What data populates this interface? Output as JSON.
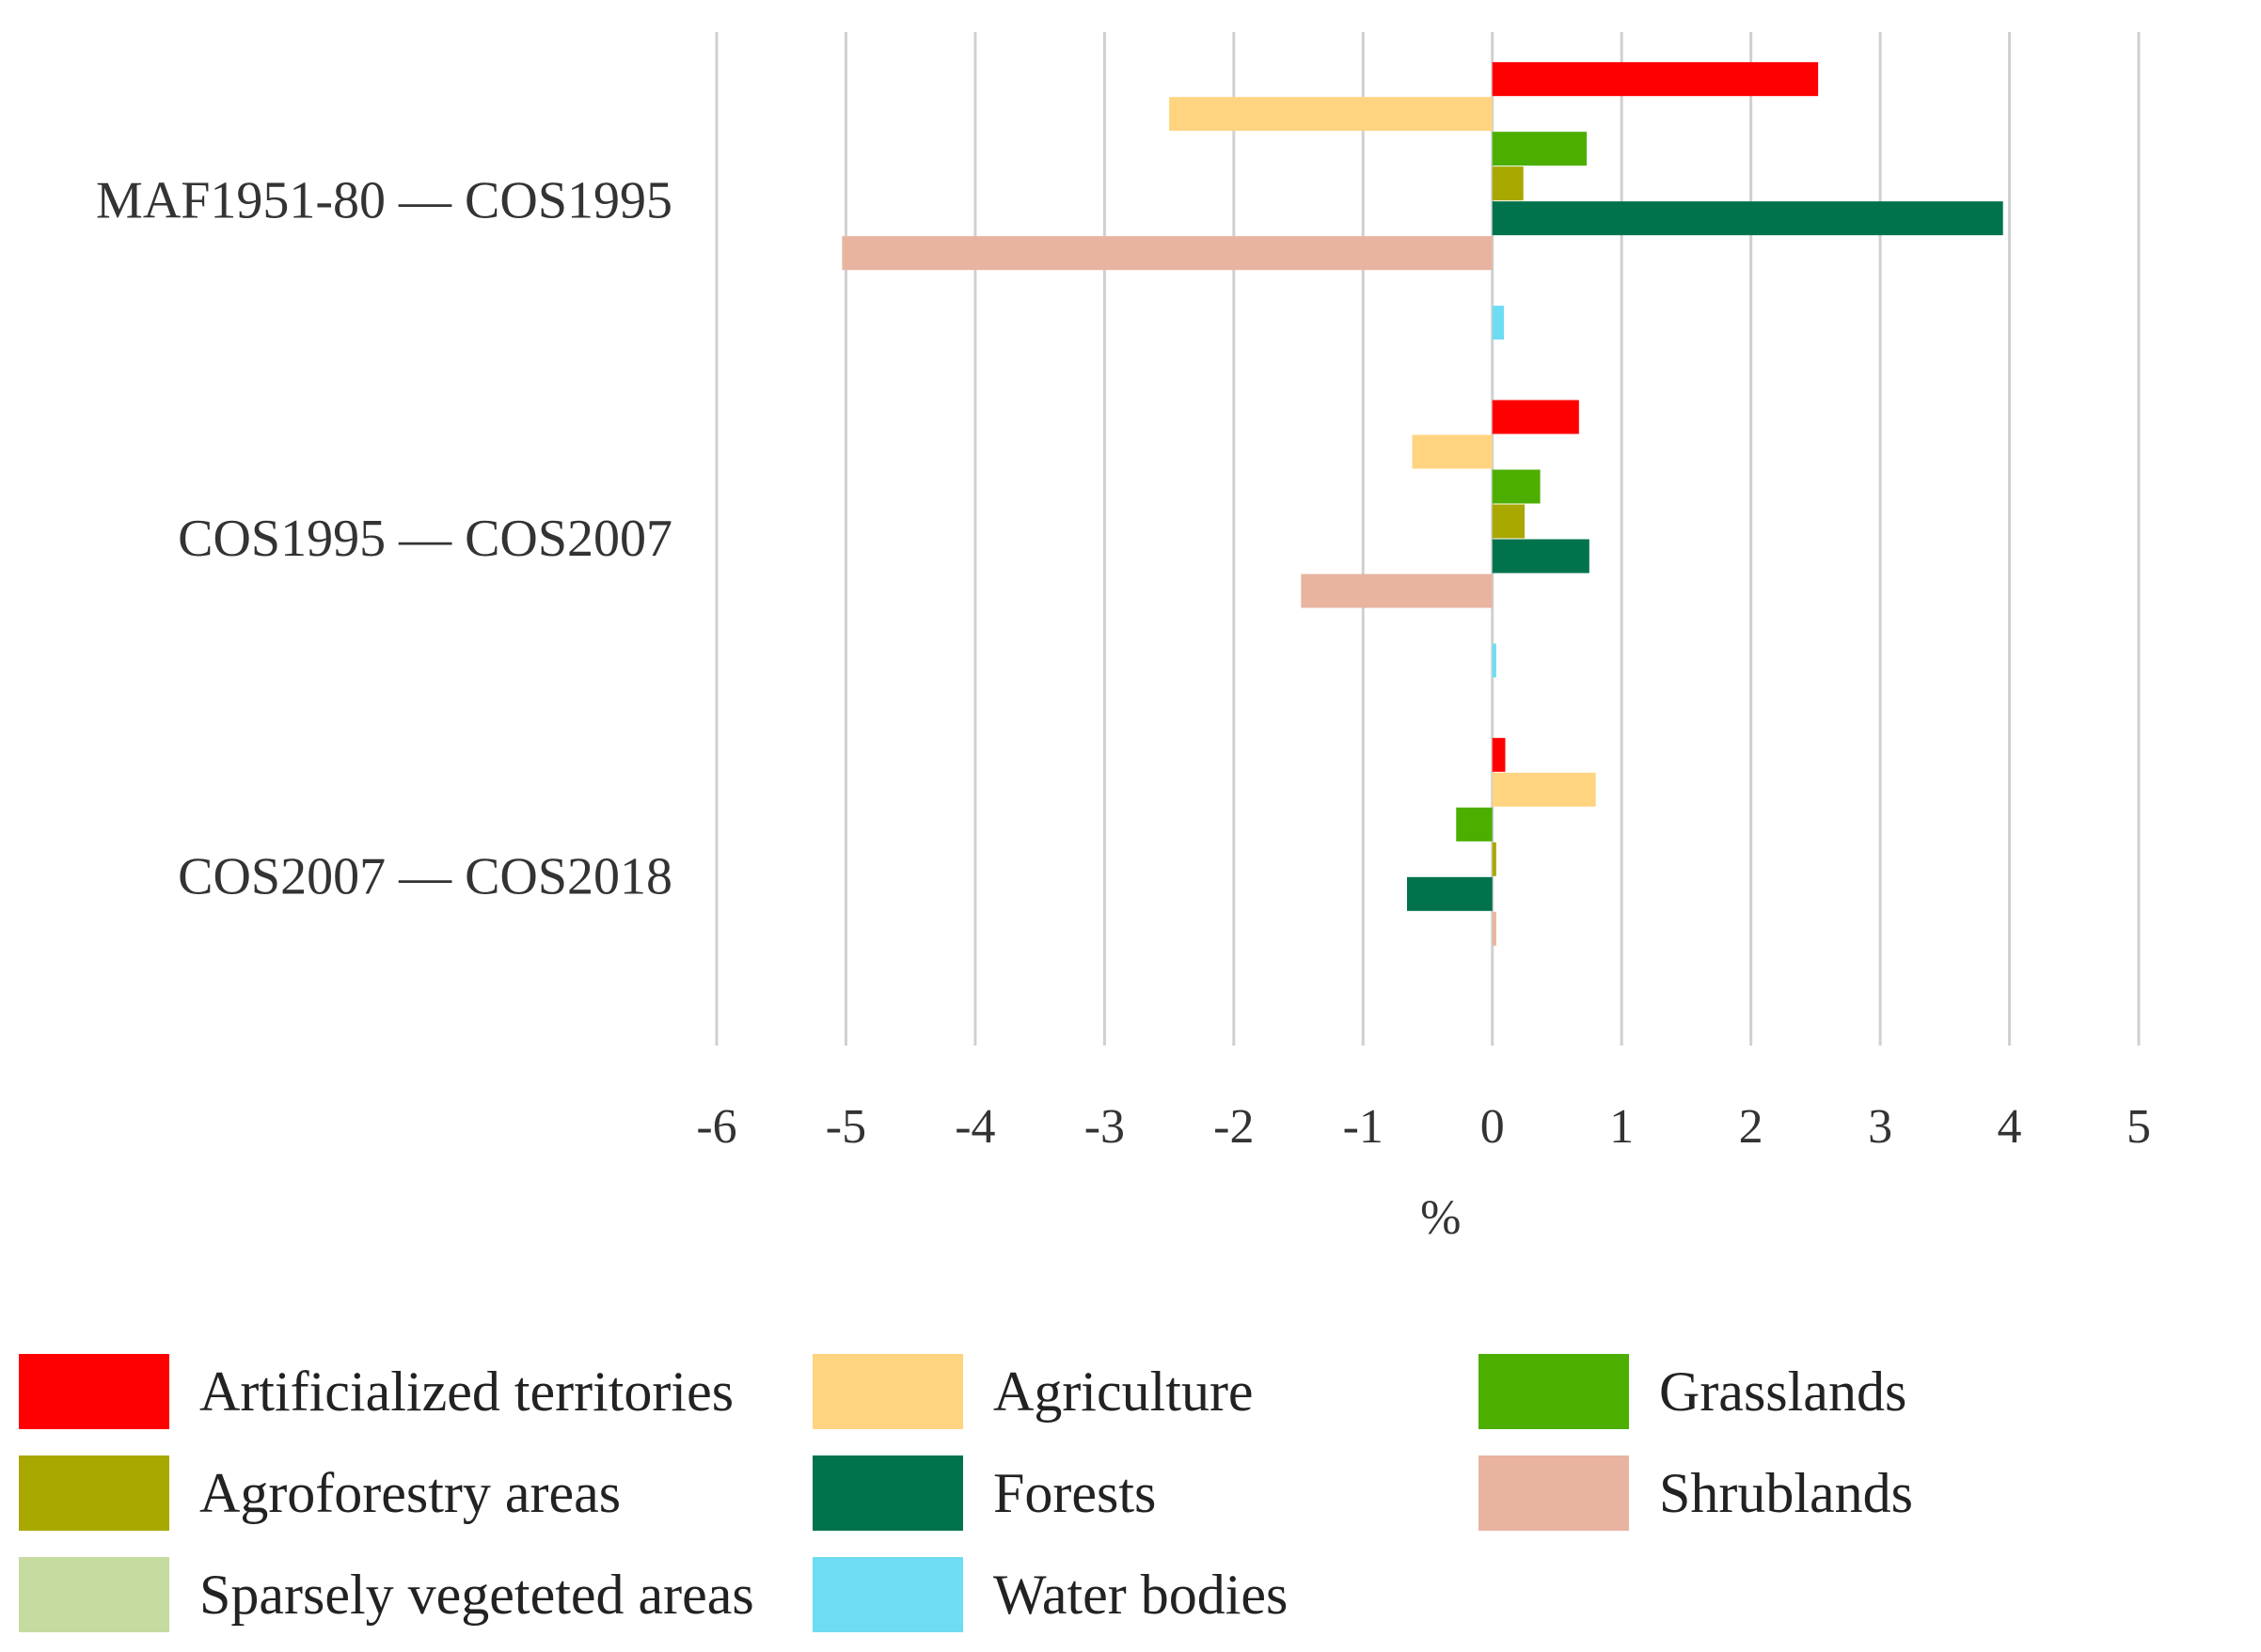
{
  "chart_data": {
    "type": "bar",
    "orientation": "horizontal",
    "title": "",
    "xlabel": "%",
    "ylabel": "",
    "xlim": [
      -6,
      5
    ],
    "x_ticks": [
      "-6",
      "-5",
      "-4",
      "-3",
      "-2",
      "-1",
      "0",
      "1",
      "2",
      "3",
      "4",
      "5"
    ],
    "grid": true,
    "legend_position": "bottom",
    "categories": [
      "MAF1951-80 — COS1995",
      "COS1995 — COS2007",
      "COS2007 — COS2018"
    ],
    "series": [
      {
        "name": "Artificialized territories",
        "color": "#ff0000",
        "values": [
          2.52,
          0.67,
          0.1
        ]
      },
      {
        "name": "Agriculture",
        "color": "#ffd480",
        "values": [
          -2.5,
          -0.62,
          0.8
        ]
      },
      {
        "name": "Grasslands",
        "color": "#4caf00",
        "values": [
          0.73,
          0.37,
          -0.28
        ]
      },
      {
        "name": "Agroforestry areas",
        "color": "#a8a800",
        "values": [
          0.24,
          0.25,
          0.03
        ]
      },
      {
        "name": "Forests",
        "color": "#00734c",
        "values": [
          3.95,
          0.75,
          -0.66
        ]
      },
      {
        "name": "Shrublands",
        "color": "#e8b4a0",
        "values": [
          -5.03,
          -1.48,
          0.03
        ]
      },
      {
        "name": "Sparsely vegeteted areas",
        "color": "#c5dba0",
        "values": [
          0.0,
          0.0,
          0.0
        ]
      },
      {
        "name": "Water bodies",
        "color": "#6edcf2",
        "values": [
          0.09,
          0.03,
          0.0
        ]
      }
    ]
  },
  "legend_layout": [
    0,
    3,
    6,
    1,
    4,
    7,
    2,
    5
  ]
}
